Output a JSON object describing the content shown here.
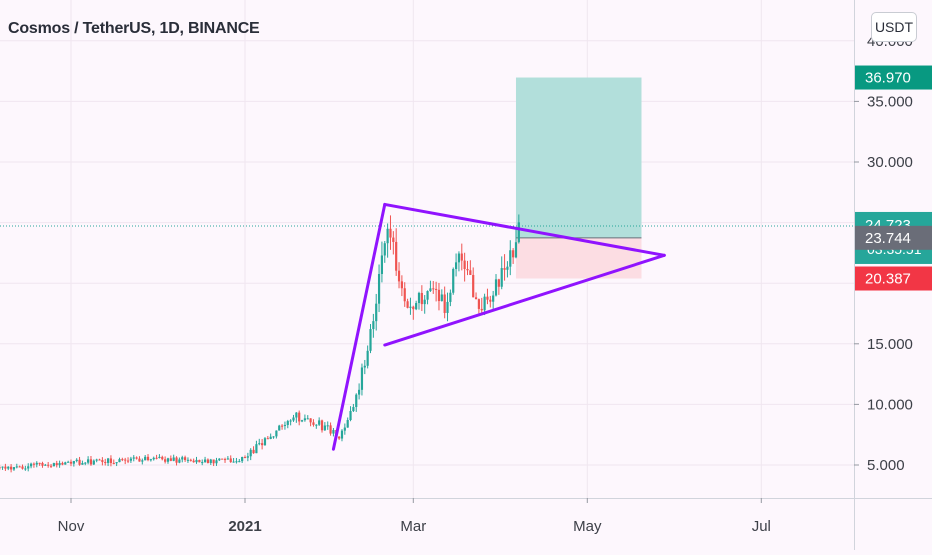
{
  "header": {
    "title": "Cosmos / TetherUS, 1D, BINANCE",
    "currency_label": "USDT"
  },
  "chart_data": {
    "type": "candlestick",
    "symbol": "Cosmos / TetherUS",
    "interval": "1D",
    "exchange": "BINANCE",
    "x_ticks": [
      "Nov",
      "2021",
      "Mar",
      "May",
      "Jul"
    ],
    "y_ticks": [
      5,
      10,
      15,
      30,
      35
    ],
    "y_partial_tick": "40.000",
    "ylim": [
      2.7,
      43
    ],
    "price_labels": [
      {
        "id": "target",
        "text": "36.970",
        "value": 36.97,
        "color": "#089981"
      },
      {
        "id": "current",
        "text": "24.723",
        "sub": "03:35:51",
        "value": 24.723,
        "color": "#26a69a"
      },
      {
        "id": "entry",
        "text": "23.744",
        "value": 23.744,
        "color": "#6a6d78"
      },
      {
        "id": "stop",
        "text": "20.387",
        "value": 20.387,
        "color": "#f23645"
      }
    ],
    "annotations": {
      "triangle": {
        "apex_top": {
          "date": "2021-02-19",
          "value": 26.5
        },
        "apex_right": {
          "date": "2021-05-28",
          "value": 22.3
        },
        "base_left": {
          "date": "2021-02-19",
          "value": 14.9
        },
        "impulse_start": {
          "date": "2021-02-01",
          "value": 6.3
        },
        "color": "#9013fe"
      },
      "position": {
        "start_date": "2021-04-06",
        "end_date": "2021-05-20",
        "target": 36.97,
        "entry": 23.744,
        "stop": 20.387,
        "profit_color": "#b2dfdb",
        "loss_color": "#fcdde3"
      }
    },
    "candles_summary": {
      "start_date": "2020-10-02",
      "end_date": "2021-04-07",
      "up_color": "#26a69a",
      "down_color": "#ef5350",
      "segments": [
        {
          "date": "2020-10-02",
          "value": 4.6
        },
        {
          "date": "2020-11-01",
          "value": 5.2
        },
        {
          "date": "2020-12-01",
          "value": 5.5
        },
        {
          "date": "2020-12-20",
          "value": 5.3
        },
        {
          "date": "2021-01-01",
          "value": 5.6
        },
        {
          "date": "2021-01-10",
          "value": 7.5
        },
        {
          "date": "2021-01-18",
          "value": 9.0
        },
        {
          "date": "2021-01-26",
          "value": 8.5
        },
        {
          "date": "2021-02-03",
          "value": 7.4
        },
        {
          "date": "2021-02-09",
          "value": 10.5
        },
        {
          "date": "2021-02-15",
          "value": 16.8
        },
        {
          "date": "2021-02-20",
          "value": 24.5
        },
        {
          "date": "2021-02-27",
          "value": 18.0
        },
        {
          "date": "2021-03-06",
          "value": 19.5
        },
        {
          "date": "2021-03-12",
          "value": 18.0
        },
        {
          "date": "2021-03-17",
          "value": 22.0
        },
        {
          "date": "2021-03-25",
          "value": 18.0
        },
        {
          "date": "2021-03-31",
          "value": 20.5
        },
        {
          "date": "2021-04-07",
          "value": 24.0
        }
      ]
    }
  }
}
